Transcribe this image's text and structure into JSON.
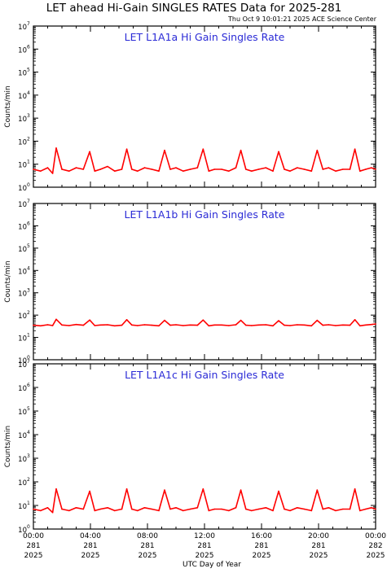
{
  "page": {
    "title": "LET ahead Hi-Gain SINGLES RATES Data for 2025-281",
    "subtitle": "Thu Oct  9 10:01:21 2025 ACE Science Center",
    "xlabel": "UTC Day of Year"
  },
  "colors": {
    "series": "#ff0000",
    "panel_title": "#2b2bd6",
    "axes": "#000000"
  },
  "chart_data": [
    {
      "type": "line",
      "title": "LET L1A1a Hi Gain Singles Rate",
      "ylabel": "Counts/min",
      "yscale": "log",
      "ylim": [
        1,
        10000000
      ],
      "xlim": [
        0,
        24
      ],
      "y_ticks": [
        "10",
        "10",
        "10",
        "10",
        "10",
        "10",
        "10",
        "10"
      ],
      "y_tick_exponents": [
        "0",
        "1",
        "2",
        "3",
        "4",
        "5",
        "6",
        "7"
      ],
      "series": [
        {
          "x": [
            0,
            0.5,
            1.0,
            1.35,
            1.6,
            2.0,
            2.5,
            3.0,
            3.5,
            3.95,
            4.3,
            4.7,
            5.2,
            5.7,
            6.2,
            6.55,
            6.9,
            7.3,
            7.8,
            8.3,
            8.8,
            9.2,
            9.6,
            10.0,
            10.5,
            11.0,
            11.5,
            11.9,
            12.3,
            12.7,
            13.2,
            13.7,
            14.2,
            14.55,
            14.9,
            15.3,
            15.8,
            16.3,
            16.8,
            17.2,
            17.6,
            18.0,
            18.5,
            19.0,
            19.5,
            19.9,
            20.3,
            20.7,
            21.2,
            21.7,
            22.2,
            22.55,
            22.9,
            23.3,
            23.7,
            24.0
          ],
          "y": [
            6,
            5,
            7,
            4,
            50,
            6,
            5,
            7,
            6,
            35,
            5,
            6,
            8,
            5,
            6,
            45,
            6,
            5,
            7,
            6,
            5,
            40,
            6,
            7,
            5,
            6,
            7,
            45,
            5,
            6,
            6,
            5,
            7,
            40,
            6,
            5,
            6,
            7,
            5,
            35,
            6,
            5,
            7,
            6,
            5,
            40,
            6,
            7,
            5,
            6,
            6,
            45,
            5,
            6,
            7,
            6
          ]
        }
      ]
    },
    {
      "type": "line",
      "title": "LET L1A1b Hi Gain Singles Rate",
      "ylabel": "Counts/min",
      "yscale": "log",
      "ylim": [
        1,
        10000000
      ],
      "xlim": [
        0,
        24
      ],
      "y_ticks": [
        "10",
        "10",
        "10",
        "10",
        "10",
        "10",
        "10",
        "10"
      ],
      "y_tick_exponents": [
        "0",
        "1",
        "2",
        "3",
        "4",
        "5",
        "6",
        "7"
      ],
      "series": [
        {
          "x": [
            0,
            0.5,
            1.0,
            1.35,
            1.6,
            2.0,
            2.5,
            3.0,
            3.5,
            3.95,
            4.3,
            4.7,
            5.2,
            5.7,
            6.2,
            6.55,
            6.9,
            7.3,
            7.8,
            8.3,
            8.8,
            9.2,
            9.6,
            10.0,
            10.5,
            11.0,
            11.5,
            11.9,
            12.3,
            12.7,
            13.2,
            13.7,
            14.2,
            14.55,
            14.9,
            15.3,
            15.8,
            16.3,
            16.8,
            17.2,
            17.6,
            18.0,
            18.5,
            19.0,
            19.5,
            19.9,
            20.3,
            20.7,
            21.2,
            21.7,
            22.2,
            22.55,
            22.9,
            23.3,
            23.7,
            24.0
          ],
          "y": [
            35,
            33,
            37,
            34,
            65,
            36,
            34,
            38,
            35,
            60,
            34,
            36,
            37,
            33,
            35,
            62,
            36,
            34,
            37,
            35,
            33,
            58,
            35,
            37,
            34,
            36,
            35,
            60,
            33,
            36,
            36,
            34,
            37,
            58,
            35,
            34,
            36,
            37,
            33,
            56,
            35,
            34,
            37,
            36,
            33,
            58,
            35,
            37,
            34,
            36,
            35,
            62,
            33,
            36,
            38,
            40
          ]
        }
      ]
    },
    {
      "type": "line",
      "title": "LET L1A1c Hi Gain Singles Rate",
      "ylabel": "Counts/min",
      "yscale": "log",
      "ylim": [
        1,
        10000000
      ],
      "xlim": [
        0,
        24
      ],
      "y_ticks": [
        "10",
        "10",
        "10",
        "10",
        "10",
        "10",
        "10",
        "10"
      ],
      "y_tick_exponents": [
        "0",
        "1",
        "2",
        "3",
        "4",
        "5",
        "6",
        "7"
      ],
      "x_ticks": [
        {
          "time": "00:00",
          "day": "281",
          "year": "2025"
        },
        {
          "time": "04:00",
          "day": "281",
          "year": "2025"
        },
        {
          "time": "08:00",
          "day": "281",
          "year": "2025"
        },
        {
          "time": "12:00",
          "day": "281",
          "year": "2025"
        },
        {
          "time": "16:00",
          "day": "281",
          "year": "2025"
        },
        {
          "time": "20:00",
          "day": "281",
          "year": "2025"
        },
        {
          "time": "00:00",
          "day": "282",
          "year": "2025"
        }
      ],
      "series": [
        {
          "x": [
            0,
            0.5,
            1.0,
            1.35,
            1.6,
            2.0,
            2.5,
            3.0,
            3.5,
            3.95,
            4.3,
            4.7,
            5.2,
            5.7,
            6.2,
            6.55,
            6.9,
            7.3,
            7.8,
            8.3,
            8.8,
            9.2,
            9.6,
            10.0,
            10.5,
            11.0,
            11.5,
            11.9,
            12.3,
            12.7,
            13.2,
            13.7,
            14.2,
            14.55,
            14.9,
            15.3,
            15.8,
            16.3,
            16.8,
            17.2,
            17.6,
            18.0,
            18.5,
            19.0,
            19.5,
            19.9,
            20.3,
            20.7,
            21.2,
            21.7,
            22.2,
            22.55,
            22.9,
            23.3,
            23.7,
            24.0
          ],
          "y": [
            7,
            6,
            8,
            5,
            50,
            7,
            6,
            8,
            7,
            40,
            6,
            7,
            8,
            6,
            7,
            50,
            7,
            6,
            8,
            7,
            6,
            45,
            7,
            8,
            6,
            7,
            8,
            50,
            6,
            7,
            7,
            6,
            8,
            45,
            7,
            6,
            7,
            8,
            6,
            40,
            7,
            6,
            8,
            7,
            6,
            45,
            7,
            8,
            6,
            7,
            7,
            50,
            6,
            7,
            8,
            7
          ]
        }
      ]
    }
  ]
}
